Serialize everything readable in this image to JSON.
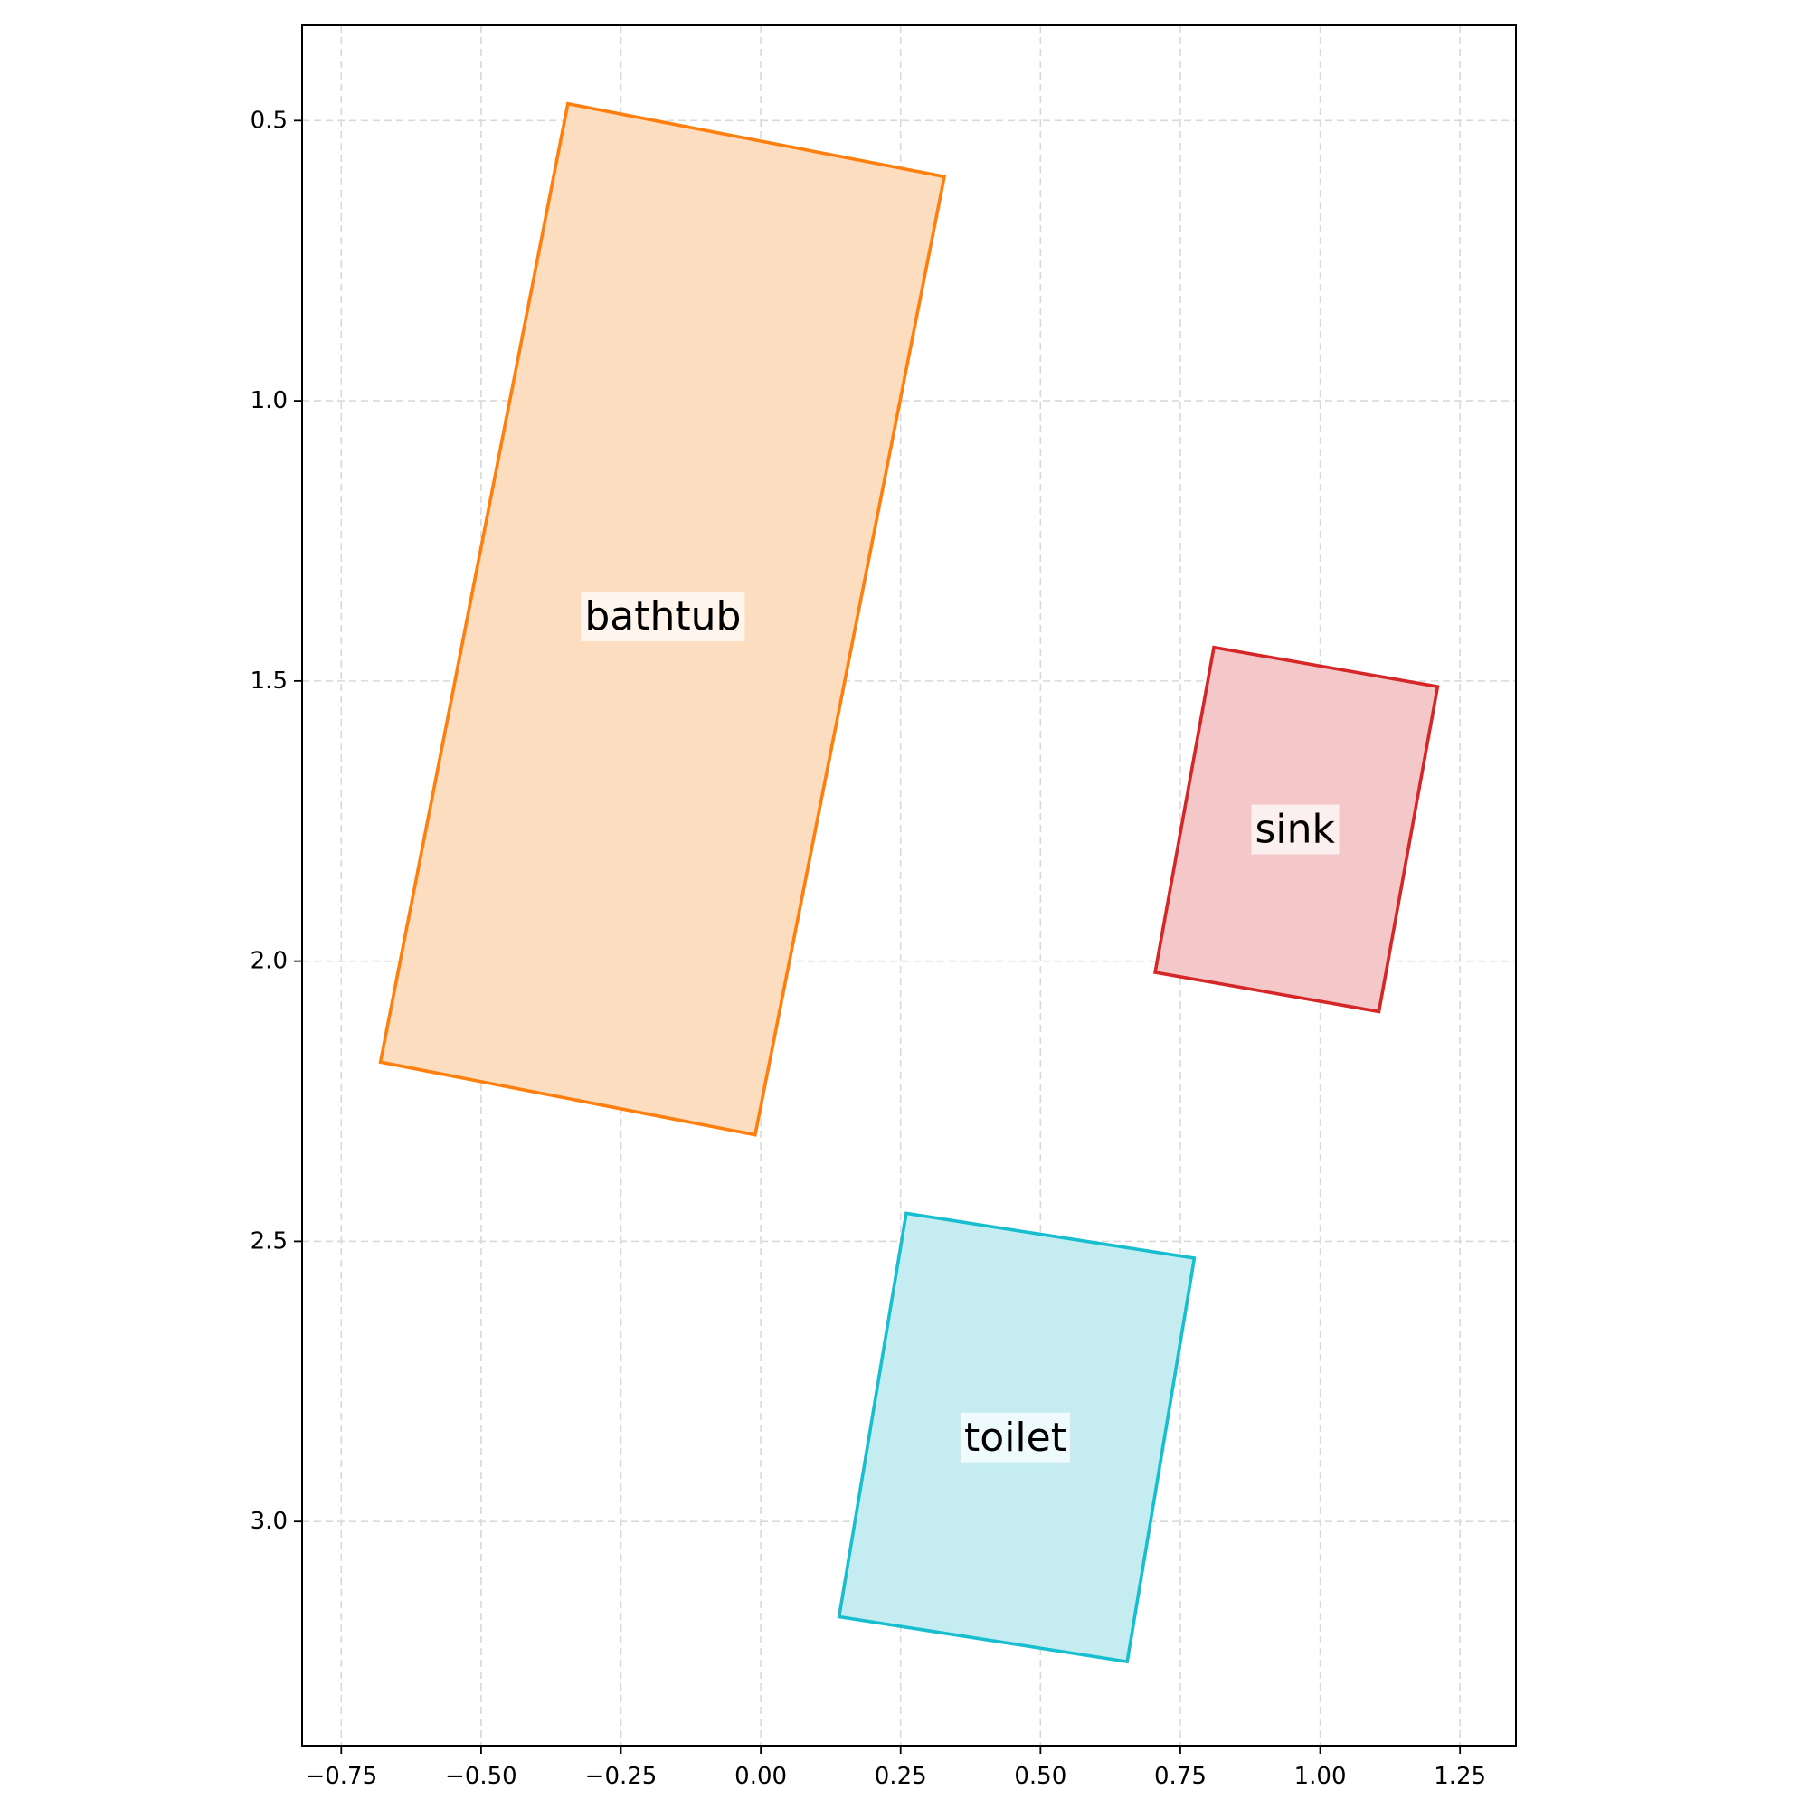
{
  "chart_data": {
    "type": "polygon-layout",
    "title": "",
    "xlabel": "",
    "ylabel": "",
    "xlim": [
      -0.82,
      1.35
    ],
    "ylim": [
      0.33,
      3.4
    ],
    "y_inverted": true,
    "grid": true,
    "x_ticks": [
      -0.75,
      -0.5,
      -0.25,
      0.0,
      0.25,
      0.5,
      0.75,
      1.0,
      1.25
    ],
    "x_tick_labels": [
      "−0.75",
      "−0.50",
      "−0.25",
      "0.00",
      "0.25",
      "0.50",
      "0.75",
      "1.00",
      "1.25"
    ],
    "y_ticks": [
      0.5,
      1.0,
      1.5,
      2.0,
      2.5,
      3.0
    ],
    "y_tick_labels": [
      "0.5",
      "1.0",
      "1.5",
      "2.0",
      "2.5",
      "3.0"
    ],
    "objects": [
      {
        "label": "bathtub",
        "color": "#ff7f0e",
        "fill": "#fdddbf",
        "corners": [
          [
            -0.345,
            0.47
          ],
          [
            0.328,
            0.6
          ],
          [
            -0.01,
            2.31
          ],
          [
            -0.68,
            2.18
          ]
        ],
        "label_pos": [
          -0.175,
          1.385
        ]
      },
      {
        "label": "sink",
        "color": "#d62728",
        "fill": "#f4c8c9",
        "corners": [
          [
            0.81,
            1.44
          ],
          [
            1.21,
            1.51
          ],
          [
            1.105,
            2.09
          ],
          [
            0.705,
            2.02
          ]
        ],
        "label_pos": [
          0.955,
          1.765
        ]
      },
      {
        "label": "toilet",
        "color": "#17becf",
        "fill": "#c5edf1",
        "corners": [
          [
            0.26,
            2.45
          ],
          [
            0.775,
            2.53
          ],
          [
            0.655,
            3.25
          ],
          [
            0.14,
            3.17
          ]
        ],
        "label_pos": [
          0.455,
          2.85
        ]
      }
    ]
  }
}
